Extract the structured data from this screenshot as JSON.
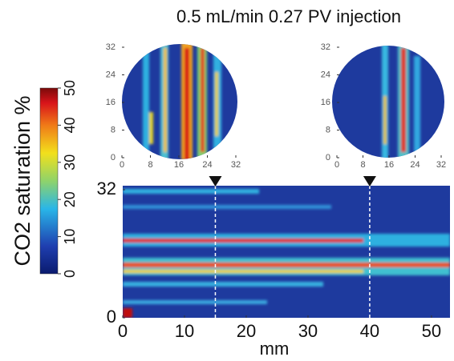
{
  "title": "0.5 mL/min 0.27 PV injection",
  "colorbar": {
    "label": "CO2 saturation %",
    "lim": [
      0,
      50
    ],
    "ticks": [
      0,
      10,
      20,
      30,
      40,
      50
    ]
  },
  "chart_data": [
    {
      "type": "heatmap",
      "xlim": [
        0,
        32
      ],
      "xticks": [
        0,
        8,
        16,
        24,
        32
      ],
      "ylim": [
        0,
        32
      ],
      "yticks": [
        0,
        8,
        16,
        24,
        32
      ]
    },
    {
      "type": "heatmap",
      "xlim": [
        0,
        32
      ],
      "xticks": [
        0,
        8,
        16,
        24,
        32
      ],
      "ylim": [
        0,
        32
      ],
      "yticks": [
        0,
        8,
        16,
        24,
        32
      ]
    },
    {
      "type": "heatmap",
      "xlabel": "mm",
      "xlim": [
        0,
        53
      ],
      "xticks": [
        0,
        10,
        20,
        30,
        40,
        50
      ],
      "ylim": [
        0,
        33
      ],
      "yticks": [
        0,
        32
      ],
      "slices": [
        15,
        40
      ]
    }
  ]
}
